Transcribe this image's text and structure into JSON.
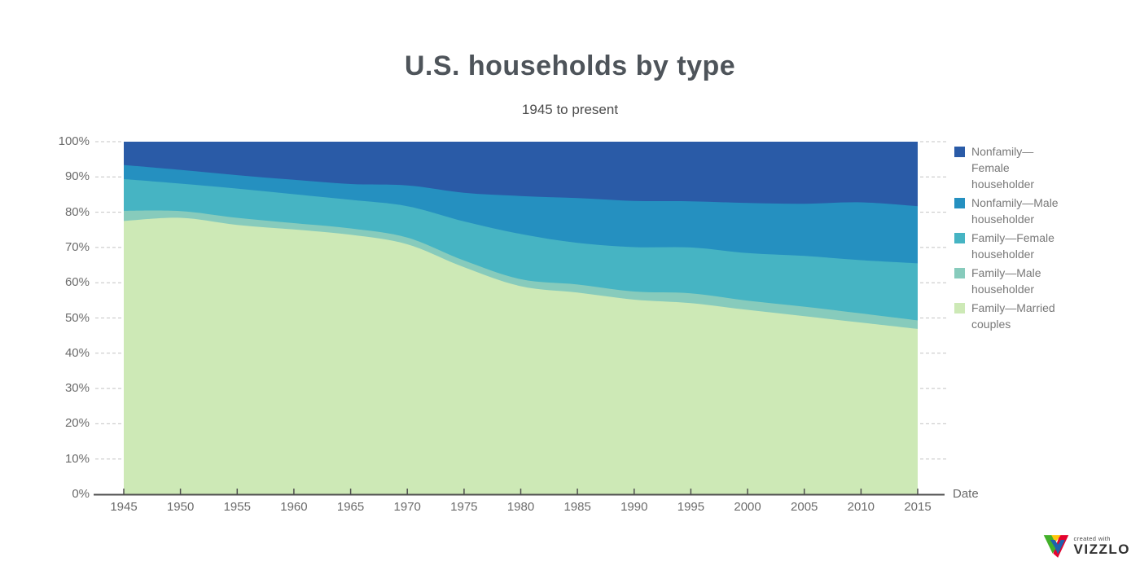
{
  "header": {
    "title": "U.S. households by type",
    "subtitle": "1945 to present"
  },
  "chart_data": {
    "type": "area",
    "variant": "100%-stacked-area",
    "title": "U.S. households by type",
    "subtitle": "1945 to present",
    "xlabel": "Date",
    "ylabel": "",
    "ylim": [
      0,
      100
    ],
    "y_tick_step": 10,
    "y_tick_suffix": "%",
    "grid": "dashed-stubs-left-and-right",
    "legend_position": "right",
    "x": [
      1945,
      1950,
      1955,
      1960,
      1965,
      1970,
      1975,
      1980,
      1985,
      1990,
      1995,
      2000,
      2005,
      2010,
      2015
    ],
    "series": [
      {
        "name": "Family—Married couples",
        "color": "#cde9b6",
        "values": [
          77.5,
          78.4,
          76.4,
          75.1,
          73.6,
          70.9,
          64.4,
          59.0,
          57.2,
          55.2,
          54.2,
          52.3,
          50.5,
          48.7,
          46.9
        ]
      },
      {
        "name": "Family—Male householder",
        "color": "#87cbbc",
        "values": [
          2.9,
          1.9,
          2.0,
          1.8,
          1.8,
          1.9,
          1.9,
          2.0,
          2.3,
          2.3,
          2.8,
          2.6,
          2.7,
          2.6,
          2.4
        ]
      },
      {
        "name": "Family—Female householder",
        "color": "#46b4c3",
        "values": [
          9.0,
          7.8,
          8.3,
          8.2,
          8.1,
          8.9,
          11.1,
          12.8,
          11.8,
          12.6,
          13.0,
          13.5,
          14.4,
          15.1,
          16.2
        ]
      },
      {
        "name": "Nonfamily—Male householder",
        "color": "#2590c0",
        "values": [
          4.0,
          3.9,
          3.8,
          4.1,
          4.5,
          5.9,
          8.1,
          10.8,
          12.7,
          13.1,
          13.1,
          14.2,
          14.8,
          16.4,
          16.2
        ]
      },
      {
        "name": "Nonfamily—Female householder",
        "color": "#2a5ba7",
        "values": [
          6.6,
          8.0,
          9.5,
          10.8,
          12.0,
          12.4,
          14.5,
          15.4,
          16.0,
          16.8,
          16.9,
          17.4,
          17.6,
          17.2,
          18.3
        ]
      }
    ],
    "colors": {
      "grid": "#c4c4c4",
      "axis": "#4f4f4f",
      "tick_label": "#6b6b6b"
    }
  },
  "legend": {
    "items": [
      {
        "label": "Nonfamily—Female householder",
        "lines": [
          "Nonfamily—",
          "Female",
          "householder"
        ],
        "color": "#2a5ba7"
      },
      {
        "label": "Nonfamily—Male householder",
        "lines": [
          "Nonfamily—Male",
          "householder"
        ],
        "color": "#2590c0"
      },
      {
        "label": "Family—Female householder",
        "lines": [
          "Family—Female",
          "householder"
        ],
        "color": "#46b4c3"
      },
      {
        "label": "Family—Male householder",
        "lines": [
          "Family—Male",
          "householder"
        ],
        "color": "#87cbbc"
      },
      {
        "label": "Family—Married couples",
        "lines": [
          "Family—Married",
          "couples"
        ],
        "color": "#cde9b6"
      }
    ]
  },
  "axes": {
    "x_axis_label": "Date",
    "x_tick_labels": [
      "1945",
      "1950",
      "1955",
      "1960",
      "1965",
      "1970",
      "1975",
      "1980",
      "1985",
      "1990",
      "1995",
      "2000",
      "2005",
      "2010",
      "2015"
    ],
    "y_tick_labels": [
      "0%",
      "10%",
      "20%",
      "30%",
      "40%",
      "50%",
      "60%",
      "70%",
      "80%",
      "90%",
      "100%"
    ]
  },
  "branding": {
    "created_with": "created with",
    "brand": "VIZZLO",
    "logo_colors": {
      "green": "#43b02a",
      "yellow": "#ffc60b",
      "red": "#e4032e",
      "blue": "#1e62ae"
    }
  }
}
